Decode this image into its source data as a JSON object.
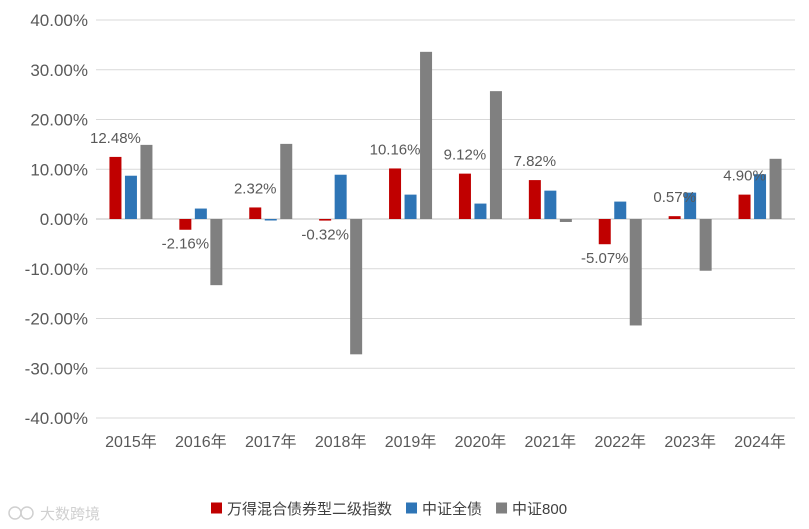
{
  "chart_data": {
    "type": "bar",
    "categories": [
      "2015年",
      "2016年",
      "2017年",
      "2018年",
      "2019年",
      "2020年",
      "2021年",
      "2022年",
      "2023年",
      "2024年"
    ],
    "series": [
      {
        "name": "万得混合债券型二级指数",
        "color": "#c00000",
        "values": [
          12.48,
          -2.16,
          2.32,
          -0.32,
          10.16,
          9.12,
          7.82,
          -5.07,
          0.57,
          4.9
        ]
      },
      {
        "name": "中证全债",
        "color": "#2e75b6",
        "values": [
          8.7,
          2.1,
          -0.3,
          8.9,
          4.9,
          3.1,
          5.7,
          3.5,
          5.3,
          9.0
        ]
      },
      {
        "name": "中证800",
        "color": "#808080",
        "values": [
          14.9,
          -13.3,
          15.1,
          -27.2,
          33.6,
          25.7,
          -0.6,
          -21.4,
          -10.4,
          12.1
        ]
      }
    ],
    "data_labels": [
      "12.48%",
      "-2.16%",
      "2.32%",
      "-0.32%",
      "10.16%",
      "9.12%",
      "7.82%",
      "-5.07%",
      "0.57%",
      "4.90%"
    ],
    "y_ticks": [
      40,
      30,
      20,
      10,
      0,
      -10,
      -20,
      -30,
      -40
    ],
    "y_tick_labels": [
      "40.00%",
      "30.00%",
      "20.00%",
      "10.00%",
      "0.00%",
      "-10.00%",
      "-20.00%",
      "-30.00%",
      "-40.00%"
    ],
    "ylim": [
      -40,
      40
    ],
    "grid": true,
    "legend_position": "bottom",
    "title": "",
    "xlabel": "",
    "ylabel": ""
  },
  "watermark": "大数跨境"
}
